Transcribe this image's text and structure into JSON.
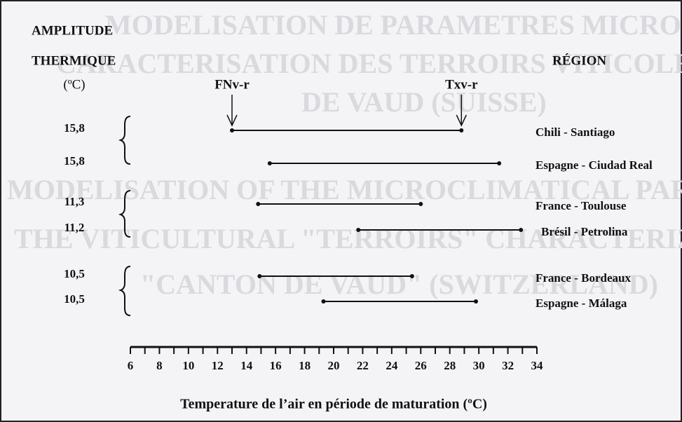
{
  "chart_data": {
    "type": "range",
    "background_text": [
      "MODELISATION DE PARAMETRES MICROCLIMATIQUES",
      "CARACTERISATION DES TERROIRS VITICOLES DU CANTON",
      "DE VAUD (SUISSE)",
      "MODELISATION OF THE MICROCLIMATICAL PARAMETERS",
      "THE VITICULTURAL \"TERROIRS\" CHARACTERIZATION",
      "\"CANTON DE VAUD\" (SWITZERLAND)"
    ],
    "left_header": [
      "AMPLITUDE",
      "THERMIQUE",
      "(ºC)"
    ],
    "right_header": "RÉGION",
    "annotations": [
      "FNv-r",
      "Txv-r"
    ],
    "categories": [
      "Chili - Santiago",
      "Espagne - Ciudad Real",
      "France - Toulouse",
      "Brésil - Petrolina",
      "France - Bordeaux",
      "Espagne - Málaga"
    ],
    "amplitudes": [
      "15,8",
      "15,8",
      "11,3",
      "11,2",
      "10,5",
      "10,5"
    ],
    "starts": [
      13.0,
      15.6,
      14.8,
      21.7,
      14.9,
      19.3
    ],
    "ends": [
      28.8,
      31.4,
      26.0,
      32.9,
      25.4,
      29.8
    ],
    "color": "#111111",
    "xlabel": "Temperature de l’air en période de maturation  (ºC)",
    "xlim": [
      6,
      34
    ],
    "xticks": [
      6,
      8,
      10,
      12,
      14,
      16,
      18,
      20,
      22,
      24,
      26,
      28,
      30,
      32,
      34
    ],
    "minor_xticks": [
      7,
      9,
      11,
      13,
      15,
      17,
      19,
      21,
      23,
      25,
      27,
      29,
      31,
      33
    ]
  }
}
